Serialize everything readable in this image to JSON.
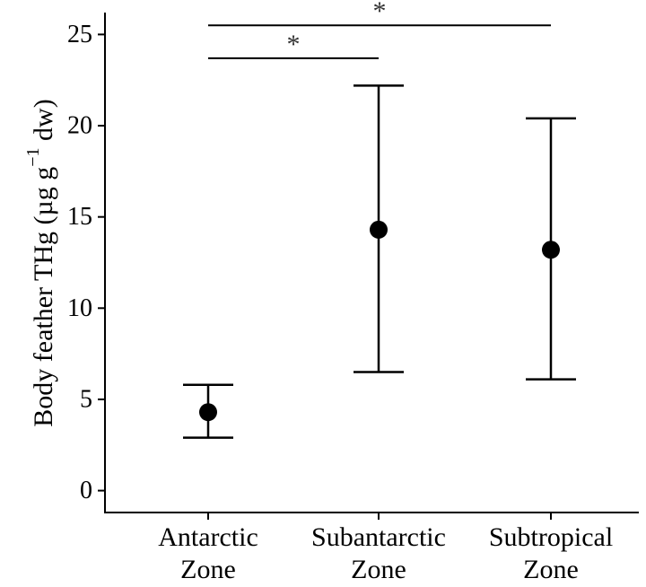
{
  "chart_data": {
    "type": "scatter",
    "title": "",
    "xlabel": "",
    "ylabel": "Body feather THg (µg g⁻¹ dw)",
    "ylabel_parts": {
      "main": "Body feather THg (µg g",
      "superscript": "−1",
      "tail": " dw)"
    },
    "categories": [
      [
        "Antarctic",
        "Zone"
      ],
      [
        "Subantarctic",
        "Zone"
      ],
      [
        "Subtropical",
        "Zone"
      ]
    ],
    "mean": [
      4.3,
      14.3,
      13.2
    ],
    "lower": [
      2.9,
      6.5,
      6.1
    ],
    "upper": [
      5.8,
      22.2,
      20.4
    ],
    "ylim": [
      -1.2,
      26.2
    ],
    "yticks": [
      0,
      5,
      10,
      15,
      20,
      25
    ],
    "ytick_labels": [
      "0",
      "5",
      "10",
      "15",
      "20",
      "25"
    ],
    "grid": false,
    "legend": "none",
    "significance": [
      {
        "from": 0,
        "to": 2,
        "y": 25.5,
        "label": "*"
      },
      {
        "from": 0,
        "to": 1,
        "y": 23.7,
        "label": "*"
      }
    ],
    "colors": {
      "points": "#000000",
      "axes": "#000000",
      "significance": "#000000"
    }
  }
}
